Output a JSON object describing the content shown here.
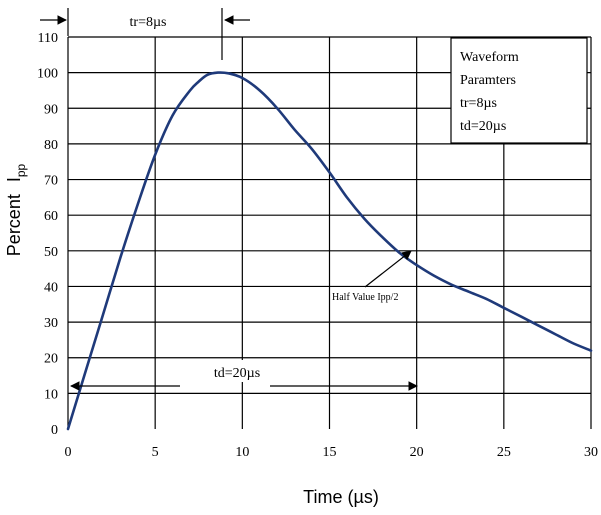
{
  "chart_data": {
    "type": "line",
    "xlabel": "Time (µs)",
    "ylabel_main": "Percent",
    "ylabel_var": "I",
    "ylabel_sub": "pp",
    "xlim": [
      0,
      30
    ],
    "ylim": [
      0,
      110
    ],
    "x_ticks": [
      "0",
      "5",
      "10",
      "15",
      "20",
      "25",
      "30"
    ],
    "y_ticks": [
      "0",
      "10",
      "20",
      "30",
      "40",
      "50",
      "60",
      "70",
      "80",
      "90",
      "100",
      "110"
    ],
    "grid": true,
    "series": [
      {
        "color": "#1f3a7a",
        "x": [
          0,
          1,
          2,
          3,
          4,
          5,
          6,
          7,
          7.5,
          8,
          8.6,
          9.2,
          10,
          11,
          12,
          13,
          14,
          15,
          16,
          17,
          18,
          19,
          20,
          21,
          22,
          23,
          24,
          25,
          26,
          27,
          28,
          29,
          30
        ],
        "y": [
          0,
          16,
          32,
          48,
          63,
          77,
          88,
          95,
          97.5,
          99.4,
          100,
          99.8,
          98.5,
          95,
          90,
          84,
          78.5,
          72,
          65,
          59,
          54,
          49.5,
          46,
          43,
          40.5,
          38.5,
          36.5,
          34,
          31.5,
          29,
          26.5,
          24,
          22
        ]
      }
    ],
    "legend_box": {
      "position": "top-right",
      "lines": [
        "Waveform",
        "Paramters",
        "tr=8µs",
        "td=20µs"
      ]
    },
    "annotations": {
      "tr_label": "tr=8µs",
      "td_label": "td=20µs",
      "half_value_label": "Half Value Ipp/2"
    }
  }
}
